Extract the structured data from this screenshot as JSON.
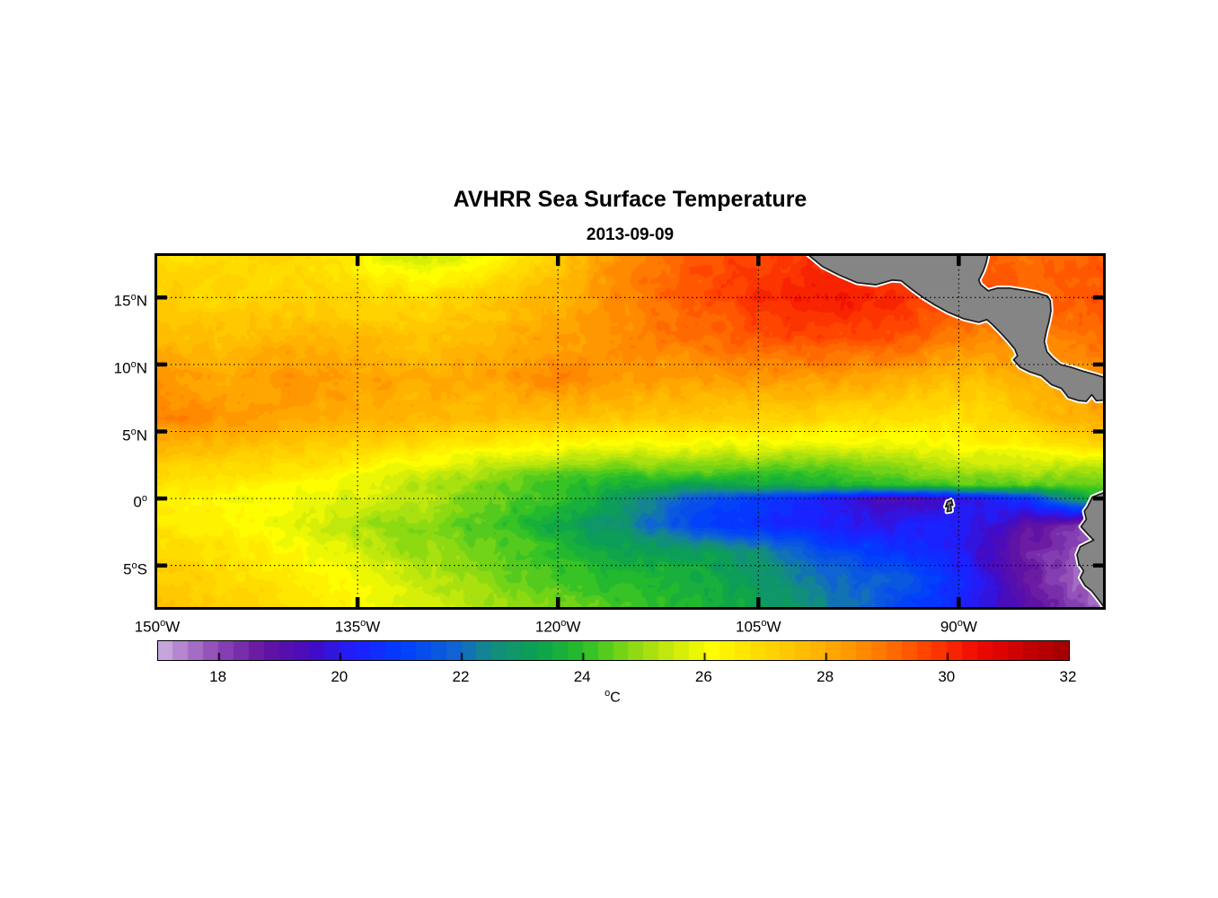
{
  "chart_data": {
    "type": "heatmap",
    "title": "AVHRR Sea Surface Temperature",
    "subtitle": "2013-09-09",
    "axes": {
      "lon_min": -150.0,
      "lon_max": -79.2,
      "lat_min": -8.1,
      "lat_max": 18.1,
      "xticks": [
        {
          "v": -150,
          "base": "150",
          "sup": "o",
          "suffix": "W"
        },
        {
          "v": -135,
          "base": "135",
          "sup": "o",
          "suffix": "W"
        },
        {
          "v": -120,
          "base": "120",
          "sup": "o",
          "suffix": "W"
        },
        {
          "v": -105,
          "base": "105",
          "sup": "o",
          "suffix": "W"
        },
        {
          "v": -90,
          "base": "90",
          "sup": "o",
          "suffix": "W"
        }
      ],
      "yticks": [
        {
          "v": 15,
          "base": "15",
          "sup": "o",
          "suffix": "N"
        },
        {
          "v": 10,
          "base": "10",
          "sup": "o",
          "suffix": "N"
        },
        {
          "v": 5,
          "base": "5",
          "sup": "o",
          "suffix": "N"
        },
        {
          "v": 0,
          "base": "0",
          "sup": "o",
          "suffix": ""
        },
        {
          "v": -5,
          "base": "5",
          "sup": "o",
          "suffix": "S"
        }
      ],
      "grid_lons": [
        -135,
        -120,
        -105,
        -90
      ],
      "grid_lats": [
        15,
        10,
        5,
        0,
        -5
      ],
      "grid_on": true
    },
    "grid": {
      "lons": [
        -150,
        -145,
        -140,
        -135,
        -130,
        -125,
        -120,
        -115,
        -110,
        -105,
        -100,
        -95,
        -90,
        -85,
        -80
      ],
      "lats": [
        18,
        15,
        12,
        9,
        6,
        4,
        2,
        1,
        0,
        -2,
        -4,
        -6,
        -8
      ],
      "sst": [
        [
          26.8,
          26.9,
          27.0,
          26.3,
          25.3,
          26.2,
          27.3,
          28.7,
          29.4,
          29.7,
          29.8,
          29.6,
          29.4,
          29.1,
          29.3
        ],
        [
          27.2,
          27.1,
          27.0,
          27.0,
          26.9,
          27.3,
          27.8,
          28.7,
          29.4,
          29.9,
          30.3,
          30.0,
          29.6,
          29.3,
          29.3
        ],
        [
          27.7,
          27.5,
          27.8,
          27.6,
          27.5,
          27.8,
          28.2,
          28.6,
          29.0,
          29.4,
          29.7,
          29.5,
          28.8,
          28.6,
          29.0
        ],
        [
          28.3,
          28.1,
          28.4,
          28.2,
          28.0,
          28.2,
          28.8,
          28.3,
          28.2,
          28.4,
          28.3,
          28.0,
          27.6,
          27.9,
          28.5
        ],
        [
          28.8,
          28.4,
          28.1,
          27.9,
          27.7,
          27.6,
          27.5,
          27.4,
          27.3,
          27.2,
          27.0,
          26.8,
          26.8,
          27.3,
          28.0
        ],
        [
          27.8,
          27.6,
          27.4,
          27.1,
          26.8,
          26.4,
          26.2,
          26.0,
          26.0,
          25.9,
          25.8,
          26.0,
          26.1,
          26.3,
          27.0
        ],
        [
          27.0,
          26.8,
          26.6,
          26.2,
          25.6,
          25.0,
          24.6,
          24.4,
          24.5,
          24.3,
          24.2,
          24.6,
          25.0,
          25.2,
          25.0
        ],
        [
          26.7,
          26.5,
          26.2,
          25.8,
          25.2,
          24.7,
          24.2,
          23.6,
          23.2,
          23.4,
          23.6,
          24.0,
          24.3,
          24.4,
          24.5
        ],
        [
          26.4,
          26.2,
          26.0,
          25.6,
          25.2,
          24.6,
          24.0,
          23.0,
          21.6,
          20.8,
          20.2,
          19.2,
          19.8,
          20.8,
          23.5
        ],
        [
          26.6,
          26.4,
          25.8,
          25.2,
          24.8,
          24.2,
          23.4,
          22.6,
          21.2,
          20.6,
          20.3,
          20.0,
          20.4,
          19.0,
          18.0
        ],
        [
          27.0,
          26.8,
          26.2,
          25.6,
          25.0,
          24.6,
          24.0,
          23.4,
          23.2,
          22.6,
          21.4,
          20.8,
          20.2,
          18.6,
          17.6
        ],
        [
          27.3,
          27.0,
          26.6,
          26.0,
          25.4,
          24.8,
          24.2,
          23.8,
          23.6,
          23.0,
          22.0,
          21.8,
          20.6,
          18.8,
          17.4
        ],
        [
          27.6,
          27.2,
          26.8,
          26.2,
          25.6,
          25.0,
          24.6,
          24.2,
          23.8,
          23.2,
          22.4,
          21.4,
          20.4,
          19.0,
          17.8
        ]
      ],
      "noise": {
        "amp1": 0.22,
        "scale1": 0.85,
        "amp2": 0.1,
        "scale2": 0.35
      },
      "quantize_step": 0.25
    },
    "colorbar": {
      "min": 17,
      "max": 32,
      "n_steps": 60,
      "ticks": [
        18,
        20,
        22,
        24,
        26,
        28,
        30
      ],
      "labels": [
        {
          "v": 18,
          "text": "18"
        },
        {
          "v": 20,
          "text": "20"
        },
        {
          "v": 22,
          "text": "22"
        },
        {
          "v": 24,
          "text": "24"
        },
        {
          "v": 26,
          "text": "26"
        },
        {
          "v": 28,
          "text": "28"
        },
        {
          "v": 30,
          "text": "30"
        },
        {
          "v": 32,
          "text": "32"
        }
      ],
      "unit_base": "o",
      "unit_suffix": "C"
    },
    "colormap_stops": [
      [
        17.0,
        205,
        180,
        225
      ],
      [
        17.5,
        172,
        120,
        200
      ],
      [
        18.0,
        140,
        70,
        180
      ],
      [
        18.75,
        100,
        20,
        160
      ],
      [
        19.5,
        70,
        10,
        190
      ],
      [
        20.25,
        30,
        30,
        255
      ],
      [
        21.0,
        0,
        60,
        255
      ],
      [
        21.9,
        15,
        100,
        210
      ],
      [
        22.5,
        20,
        140,
        130
      ],
      [
        23.25,
        10,
        160,
        80
      ],
      [
        24.0,
        40,
        190,
        40
      ],
      [
        24.75,
        130,
        215,
        20
      ],
      [
        25.5,
        205,
        235,
        10
      ],
      [
        26.1,
        255,
        255,
        0
      ],
      [
        26.75,
        255,
        225,
        0
      ],
      [
        27.5,
        255,
        195,
        0
      ],
      [
        28.25,
        255,
        160,
        0
      ],
      [
        29.0,
        255,
        115,
        0
      ],
      [
        29.75,
        255,
        60,
        0
      ],
      [
        30.5,
        240,
        10,
        0
      ],
      [
        31.25,
        200,
        0,
        0
      ],
      [
        32.0,
        160,
        0,
        0
      ]
    ],
    "land": {
      "fill": "#858585",
      "coast_stroke": "#1a1a1a",
      "coast_width": 1.7,
      "fringe_color": "#ffffff",
      "fringe_width": 5.5,
      "polygons": {
        "central_america": [
          [
            -101.4,
            18.3
          ],
          [
            -100.2,
            17.3
          ],
          [
            -98.9,
            16.65
          ],
          [
            -97.6,
            16.1
          ],
          [
            -96.2,
            15.95
          ],
          [
            -95.0,
            16.3
          ],
          [
            -94.3,
            16.25
          ],
          [
            -93.5,
            15.6
          ],
          [
            -92.6,
            14.95
          ],
          [
            -91.8,
            14.45
          ],
          [
            -90.8,
            13.9
          ],
          [
            -89.6,
            13.4
          ],
          [
            -88.5,
            13.15
          ],
          [
            -87.9,
            13.35
          ],
          [
            -87.5,
            13.0
          ],
          [
            -86.9,
            12.4
          ],
          [
            -86.3,
            11.75
          ],
          [
            -85.8,
            11.15
          ],
          [
            -85.6,
            10.65
          ],
          [
            -85.9,
            10.35
          ],
          [
            -85.4,
            9.8
          ],
          [
            -84.7,
            9.45
          ],
          [
            -83.8,
            9.15
          ],
          [
            -83.05,
            8.5
          ],
          [
            -82.3,
            8.2
          ],
          [
            -81.8,
            7.55
          ],
          [
            -81.0,
            7.3
          ],
          [
            -80.45,
            7.25
          ],
          [
            -80.05,
            7.75
          ],
          [
            -79.7,
            7.3
          ],
          [
            -79.0,
            7.35
          ],
          [
            -79.0,
            9.0
          ],
          [
            -79.8,
            9.25
          ],
          [
            -80.7,
            9.5
          ],
          [
            -81.6,
            9.8
          ],
          [
            -82.4,
            10.0
          ],
          [
            -82.95,
            10.45
          ],
          [
            -83.4,
            10.95
          ],
          [
            -83.6,
            11.7
          ],
          [
            -83.45,
            12.45
          ],
          [
            -83.25,
            13.2
          ],
          [
            -83.1,
            14.0
          ],
          [
            -83.15,
            14.75
          ],
          [
            -83.35,
            15.1
          ],
          [
            -84.2,
            15.35
          ],
          [
            -85.2,
            15.55
          ],
          [
            -86.2,
            15.7
          ],
          [
            -87.1,
            15.7
          ],
          [
            -87.8,
            15.5
          ],
          [
            -88.35,
            15.95
          ],
          [
            -88.5,
            16.3
          ],
          [
            -88.15,
            17.0
          ],
          [
            -87.95,
            17.6
          ],
          [
            -87.8,
            18.3
          ]
        ],
        "south_america": [
          [
            -79.0,
            0.5
          ],
          [
            -80.0,
            0.1
          ],
          [
            -80.35,
            -0.6
          ],
          [
            -80.6,
            -0.95
          ],
          [
            -80.45,
            -1.55
          ],
          [
            -80.85,
            -2.1
          ],
          [
            -80.3,
            -2.7
          ],
          [
            -79.9,
            -3.1
          ],
          [
            -80.9,
            -3.6
          ],
          [
            -81.15,
            -4.2
          ],
          [
            -81.0,
            -4.9
          ],
          [
            -80.65,
            -5.4
          ],
          [
            -80.9,
            -5.9
          ],
          [
            -80.55,
            -6.5
          ],
          [
            -80.05,
            -6.9
          ],
          [
            -79.65,
            -7.4
          ],
          [
            -79.35,
            -7.8
          ],
          [
            -79.0,
            -8.3
          ]
        ],
        "galapagos": [
          [
            -90.85,
            -0.25
          ],
          [
            -90.55,
            -0.12
          ],
          [
            -90.45,
            -0.5
          ],
          [
            -90.62,
            -0.45
          ],
          [
            -90.55,
            -0.92
          ],
          [
            -90.88,
            -0.98
          ],
          [
            -90.78,
            -0.55
          ],
          [
            -90.98,
            -0.62
          ]
        ]
      }
    },
    "style": {
      "background": "#ffffff",
      "axis_color": "#000000",
      "gridline_color": "#000000",
      "tick_length": 11,
      "tick_width": 4.5
    }
  }
}
